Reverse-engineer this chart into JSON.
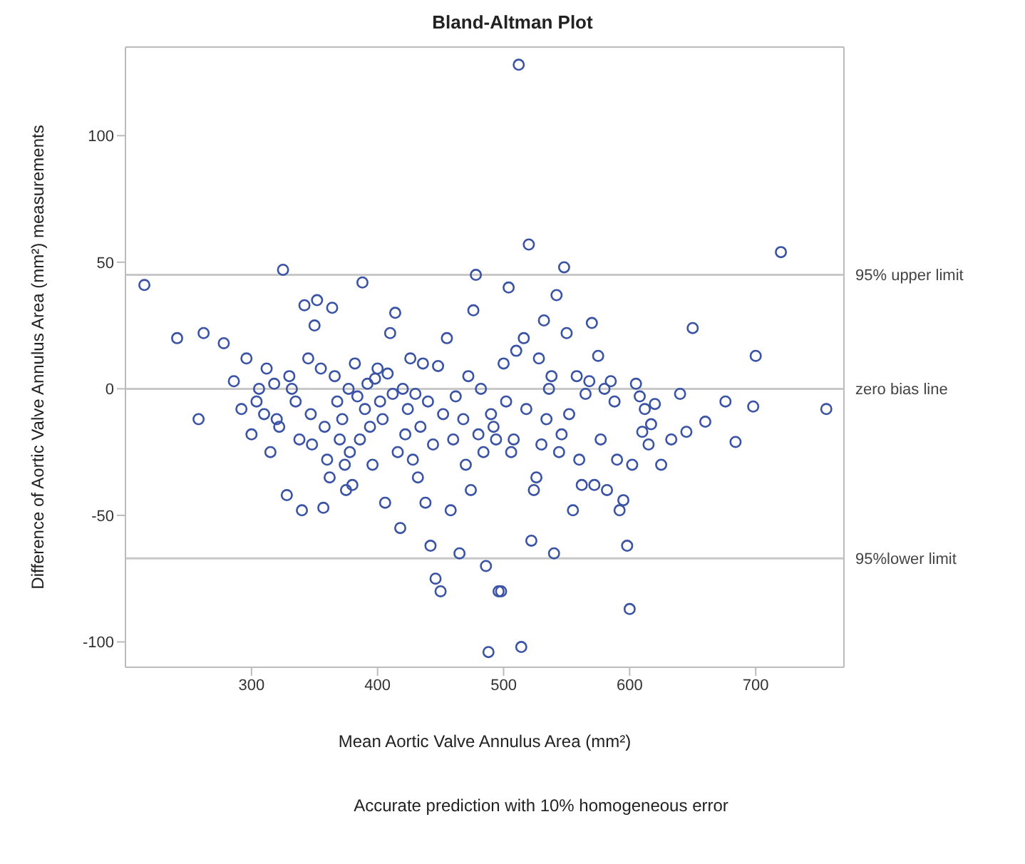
{
  "chart_data": {
    "type": "scatter",
    "title": "Bland-Altman Plot",
    "xlabel": "Mean Aortic Valve Annulus Area (mm²)",
    "ylabel": "Difference of Aortic Valve Annulus Area (mm²) measurements",
    "annotations": [
      "Accurate prediction with 10% homogeneous error"
    ],
    "series": [
      {
        "color": "#3a53a4",
        "x": [
          215,
          241,
          262,
          258,
          278,
          286,
          292,
          296,
          300,
          304,
          306,
          310,
          312,
          315,
          318,
          320,
          322,
          325,
          328,
          330,
          332,
          335,
          338,
          340,
          342,
          345,
          347,
          348,
          350,
          352,
          355,
          357,
          358,
          360,
          362,
          364,
          366,
          368,
          370,
          372,
          374,
          375,
          377,
          378,
          380,
          382,
          384,
          386,
          388,
          390,
          392,
          394,
          396,
          398,
          400,
          402,
          404,
          406,
          408,
          410,
          412,
          414,
          416,
          418,
          420,
          422,
          424,
          426,
          428,
          430,
          432,
          434,
          436,
          438,
          440,
          442,
          444,
          446,
          448,
          450,
          452,
          455,
          458,
          460,
          462,
          465,
          468,
          470,
          472,
          474,
          476,
          478,
          480,
          482,
          484,
          486,
          488,
          490,
          492,
          494,
          496,
          498,
          500,
          502,
          504,
          506,
          508,
          510,
          512,
          514,
          516,
          518,
          520,
          522,
          524,
          526,
          528,
          530,
          532,
          534,
          536,
          538,
          540,
          542,
          544,
          546,
          548,
          550,
          552,
          555,
          558,
          560,
          562,
          565,
          568,
          570,
          572,
          575,
          577,
          580,
          582,
          585,
          588,
          590,
          592,
          595,
          598,
          600,
          602,
          605,
          608,
          610,
          612,
          615,
          617,
          620,
          625,
          633,
          640,
          645,
          650,
          660,
          676,
          684,
          698,
          700,
          720,
          756
        ],
        "values": [
          41,
          20,
          22,
          -12,
          18,
          3,
          -8,
          12,
          -18,
          -5,
          0,
          -10,
          8,
          -25,
          2,
          -12,
          -15,
          47,
          -42,
          5,
          0,
          -5,
          -20,
          -48,
          33,
          12,
          -10,
          -22,
          25,
          35,
          8,
          -47,
          -15,
          -28,
          -35,
          32,
          5,
          -5,
          -20,
          -12,
          -30,
          -40,
          0,
          -25,
          -38,
          10,
          -3,
          -20,
          42,
          -8,
          2,
          -15,
          -30,
          4,
          8,
          -5,
          -12,
          -45,
          6,
          22,
          -2,
          30,
          -25,
          -55,
          0,
          -18,
          -8,
          12,
          -28,
          -2,
          -35,
          -15,
          10,
          -45,
          -5,
          -62,
          -22,
          -75,
          9,
          -80,
          -10,
          20,
          -48,
          -20,
          -3,
          -65,
          -12,
          -30,
          5,
          -40,
          31,
          45,
          -18,
          0,
          -25,
          -70,
          -104,
          -10,
          -15,
          -20,
          -80,
          -80,
          10,
          -5,
          40,
          -25,
          -20,
          15,
          128,
          -102,
          20,
          -8,
          57,
          -60,
          -40,
          -35,
          12,
          -22,
          27,
          -12,
          0,
          5,
          -65,
          37,
          -25,
          -18,
          48,
          22,
          -10,
          -48,
          5,
          -28,
          -38,
          -2,
          3,
          26,
          -38,
          13,
          -20,
          0,
          -40,
          3,
          -5,
          -28,
          -48,
          -44,
          -62,
          -87,
          -30,
          2,
          -3,
          -17,
          -8,
          -22,
          -14,
          -6,
          -30,
          -20,
          -2,
          -17,
          24,
          -13,
          -5,
          -21,
          -7,
          13,
          54,
          -8
        ]
      }
    ],
    "xlim": [
      200,
      770
    ],
    "xticks": [
      300,
      400,
      500,
      600,
      700
    ],
    "ylim": [
      -110,
      135
    ],
    "yticks": [
      -100,
      -50,
      0,
      50,
      100
    ],
    "marker": "circle",
    "ref_lines": [
      {
        "axis": "y",
        "value": 45,
        "label": "95% upper limit",
        "color": "#c8c8c8"
      },
      {
        "axis": "y",
        "value": 0,
        "label": "zero bias line",
        "color": "#c8c8c8"
      },
      {
        "axis": "y",
        "value": -67,
        "label": "95%lower limit",
        "color": "#c8c8c8"
      }
    ]
  }
}
